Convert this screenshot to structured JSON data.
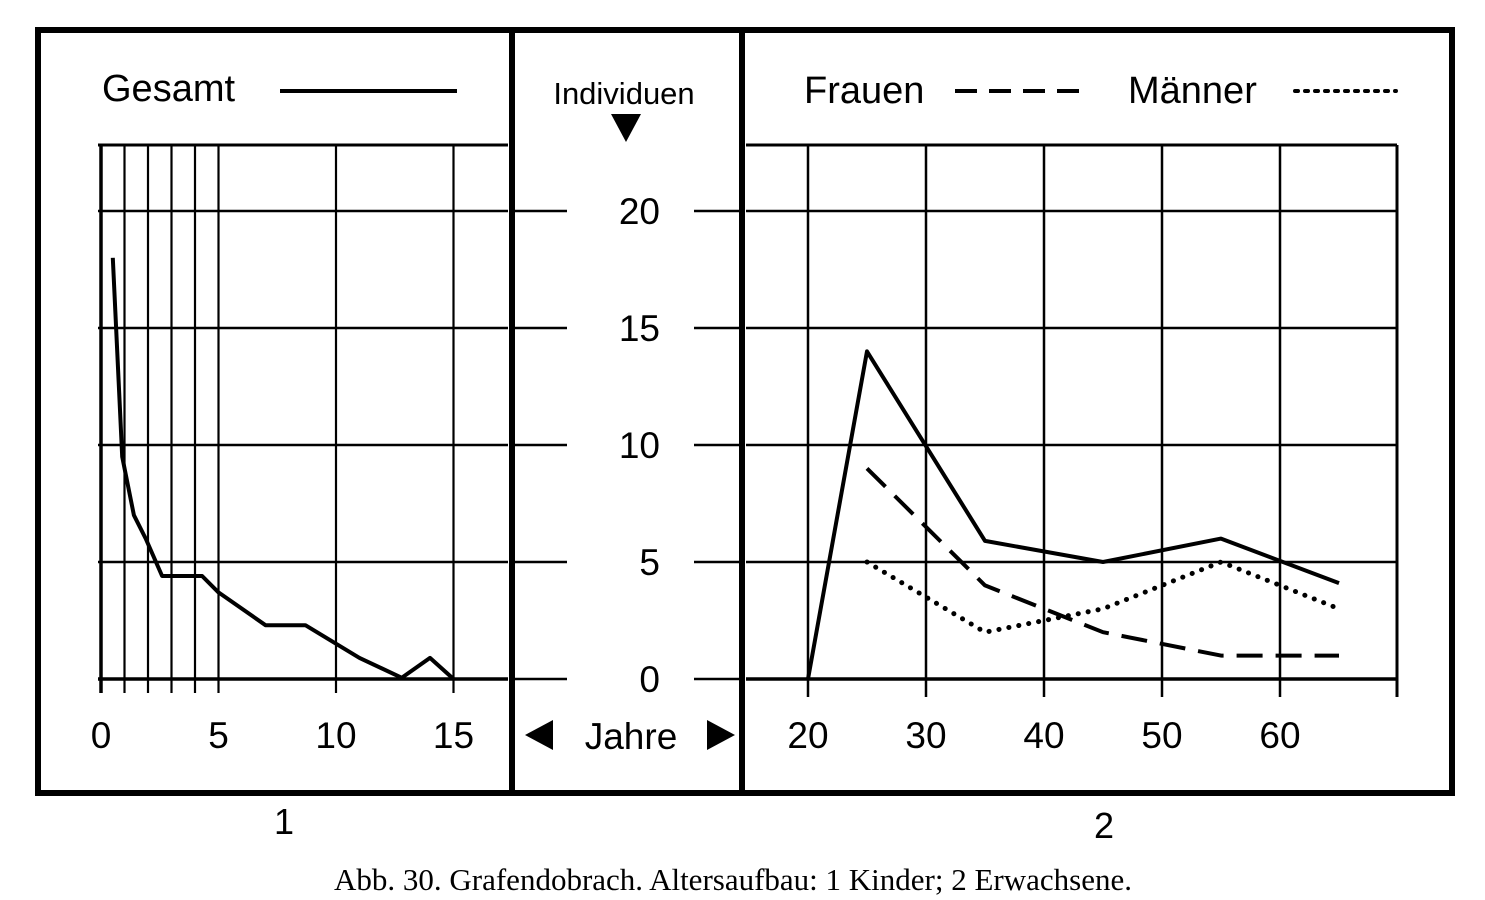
{
  "figure": {
    "panel1_label": "1",
    "panel2_label": "2",
    "caption": "Abb. 30.  Grafendobrach. Altersaufbau: 1 Kinder; 2 Erwachsene.",
    "y_axis_title": "Individuen",
    "x_axis_title": "Jahre"
  },
  "legend": {
    "gesamt": "Gesamt",
    "frauen": "Frauen",
    "maenner": "Männer"
  },
  "chart_data": [
    {
      "type": "line",
      "title": "",
      "xlabel": "Jahre",
      "ylabel": "Individuen",
      "xlim": [
        0,
        17
      ],
      "ylim": [
        0,
        23
      ],
      "x_ticks": [
        0,
        5,
        10,
        15
      ],
      "y_ticks": [
        0,
        5,
        10,
        15,
        20
      ],
      "grid": true,
      "series": [
        {
          "name": "Gesamt",
          "style": "solid",
          "x": [
            0.5,
            0.9,
            1.4,
            1.9,
            2.6,
            3.2,
            4.3,
            5.0,
            7.0,
            8.7,
            11.0,
            12.8,
            14.0,
            15.0
          ],
          "y": [
            18,
            9.5,
            7,
            6,
            4.4,
            4.4,
            4.4,
            3.7,
            2.3,
            2.3,
            0.9,
            0.05,
            0.9,
            0
          ]
        }
      ]
    },
    {
      "type": "line",
      "title": "",
      "xlabel": "Jahre",
      "ylabel": "Individuen",
      "xlim": [
        15,
        70
      ],
      "ylim": [
        0,
        23
      ],
      "x_ticks": [
        20,
        30,
        40,
        50,
        60
      ],
      "y_ticks": [
        0,
        5,
        10,
        15,
        20
      ],
      "grid": true,
      "series": [
        {
          "name": "Gesamt",
          "style": "solid",
          "x": [
            20,
            25,
            35,
            45,
            55,
            65
          ],
          "y": [
            0,
            14,
            5.9,
            5,
            6,
            4.1
          ]
        },
        {
          "name": "Frauen",
          "style": "dashed",
          "x": [
            25,
            35,
            45,
            55,
            65
          ],
          "y": [
            9,
            4,
            2,
            1,
            1
          ]
        },
        {
          "name": "Männer",
          "style": "dotted",
          "x": [
            25,
            35,
            45,
            55,
            65
          ],
          "y": [
            5,
            2,
            3,
            5,
            3
          ]
        }
      ]
    }
  ]
}
